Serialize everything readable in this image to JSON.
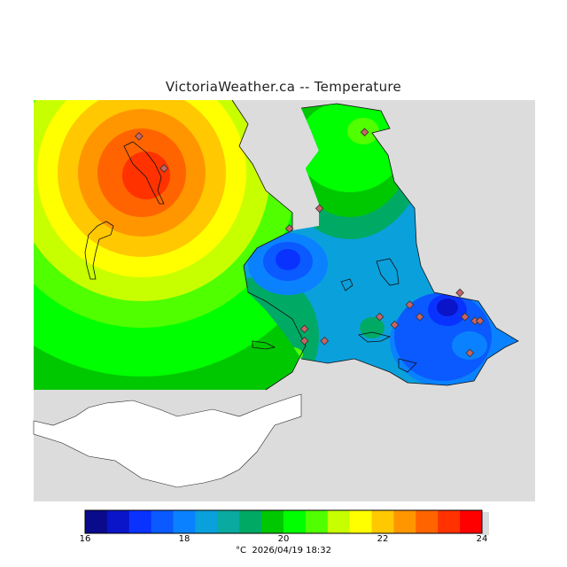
{
  "title": "VictoriaWeather.ca -- Temperature",
  "legend": {
    "ticks": [
      "16",
      "18",
      "20",
      "22",
      "24"
    ],
    "unit": "°C",
    "datetime": "2026/04/19 18:32",
    "range": [
      16,
      24
    ],
    "step": 0.5,
    "colors": [
      "#0a0a8c",
      "#0a14c8",
      "#0a32ff",
      "#0a5aff",
      "#0a82ff",
      "#0aa0dc",
      "#0aaaa0",
      "#00aa64",
      "#00c800",
      "#00ff00",
      "#50ff00",
      "#c8ff00",
      "#ffff00",
      "#ffc800",
      "#ff9600",
      "#ff6400",
      "#ff3200",
      "#ff0000"
    ]
  },
  "stations": [
    {
      "lon": 0.21,
      "lat": 0.09
    },
    {
      "lon": 0.26,
      "lat": 0.17
    },
    {
      "lon": 0.66,
      "lat": 0.08
    },
    {
      "lon": 0.57,
      "lat": 0.27
    },
    {
      "lon": 0.51,
      "lat": 0.32
    },
    {
      "lon": 0.54,
      "lat": 0.57
    },
    {
      "lon": 0.54,
      "lat": 0.6
    },
    {
      "lon": 0.58,
      "lat": 0.6
    },
    {
      "lon": 0.69,
      "lat": 0.54
    },
    {
      "lon": 0.72,
      "lat": 0.56
    },
    {
      "lon": 0.75,
      "lat": 0.51
    },
    {
      "lon": 0.77,
      "lat": 0.54
    },
    {
      "lon": 0.85,
      "lat": 0.48
    },
    {
      "lon": 0.86,
      "lat": 0.54
    },
    {
      "lon": 0.88,
      "lat": 0.55
    },
    {
      "lon": 0.89,
      "lat": 0.55
    },
    {
      "lon": 0.87,
      "lat": 0.63
    }
  ]
}
